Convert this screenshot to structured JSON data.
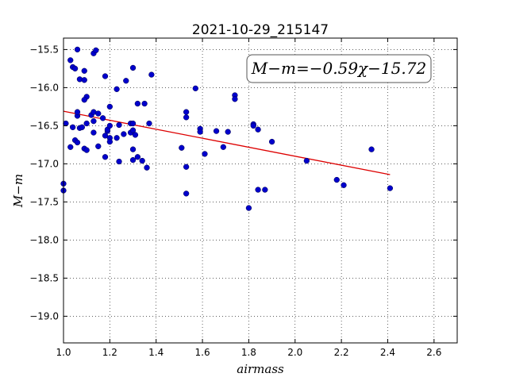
{
  "chart_data": {
    "type": "scatter",
    "title": "2021-10-29_215147",
    "xlabel": "airmass",
    "ylabel": "M−m",
    "xlim": [
      1.0,
      2.7
    ],
    "ylim": [
      -19.35,
      -15.35
    ],
    "y_inverted": true,
    "grid": true,
    "x_ticks": [
      1.0,
      1.2,
      1.4,
      1.6,
      1.8,
      2.0,
      2.2,
      2.4,
      2.6
    ],
    "x_tick_labels": [
      "1.0",
      "1.2",
      "1.4",
      "1.6",
      "1.8",
      "2.0",
      "2.2",
      "2.4",
      "2.6"
    ],
    "y_ticks": [
      -15.5,
      -16.0,
      -16.5,
      -17.0,
      -17.5,
      -18.0,
      -18.5,
      -19.0
    ],
    "y_tick_labels": [
      "−15.5",
      "−16.0",
      "−16.5",
      "−17.0",
      "−17.5",
      "−18.0",
      "−18.5",
      "−19.0"
    ],
    "annotation": "M−m=−0.59χ−15.72",
    "colors": {
      "points": "#0000cc",
      "fit_line": "#dd0000"
    },
    "fit": {
      "slope": -0.59,
      "intercept": -15.72,
      "x_range": [
        1.0,
        2.41
      ]
    },
    "points": [
      [
        1.0,
        -17.26
      ],
      [
        1.0,
        -17.35
      ],
      [
        1.01,
        -16.47
      ],
      [
        1.03,
        -15.64
      ],
      [
        1.04,
        -15.73
      ],
      [
        1.05,
        -15.75
      ],
      [
        1.06,
        -15.5
      ],
      [
        1.07,
        -15.89
      ],
      [
        1.09,
        -15.9
      ],
      [
        1.09,
        -15.78
      ],
      [
        1.1,
        -16.12
      ],
      [
        1.09,
        -16.16
      ],
      [
        1.04,
        -16.52
      ],
      [
        1.05,
        -16.69
      ],
      [
        1.06,
        -16.72
      ],
      [
        1.03,
        -16.78
      ],
      [
        1.07,
        -16.53
      ],
      [
        1.08,
        -16.52
      ],
      [
        1.06,
        -16.37
      ],
      [
        1.06,
        -16.32
      ],
      [
        1.1,
        -16.47
      ],
      [
        1.09,
        -16.8
      ],
      [
        1.1,
        -16.82
      ],
      [
        1.12,
        -16.36
      ],
      [
        1.13,
        -16.32
      ],
      [
        1.13,
        -16.44
      ],
      [
        1.13,
        -16.59
      ],
      [
        1.13,
        -15.55
      ],
      [
        1.14,
        -15.51
      ],
      [
        1.15,
        -16.34
      ],
      [
        1.15,
        -16.77
      ],
      [
        1.17,
        -16.4
      ],
      [
        1.18,
        -15.85
      ],
      [
        1.18,
        -16.63
      ],
      [
        1.19,
        -16.57
      ],
      [
        1.19,
        -16.55
      ],
      [
        1.2,
        -16.5
      ],
      [
        1.2,
        -16.25
      ],
      [
        1.2,
        -16.66
      ],
      [
        1.2,
        -16.71
      ],
      [
        1.18,
        -16.91
      ],
      [
        1.23,
        -16.02
      ],
      [
        1.23,
        -16.66
      ],
      [
        1.24,
        -16.49
      ],
      [
        1.24,
        -16.97
      ],
      [
        1.26,
        -16.61
      ],
      [
        1.27,
        -15.91
      ],
      [
        1.29,
        -16.47
      ],
      [
        1.29,
        -16.59
      ],
      [
        1.3,
        -16.47
      ],
      [
        1.3,
        -16.56
      ],
      [
        1.3,
        -15.74
      ],
      [
        1.31,
        -16.62
      ],
      [
        1.3,
        -16.81
      ],
      [
        1.3,
        -16.95
      ],
      [
        1.32,
        -16.91
      ],
      [
        1.32,
        -16.21
      ],
      [
        1.34,
        -16.96
      ],
      [
        1.35,
        -16.21
      ],
      [
        1.36,
        -17.05
      ],
      [
        1.37,
        -16.47
      ],
      [
        1.38,
        -15.83
      ],
      [
        1.51,
        -16.79
      ],
      [
        1.53,
        -16.32
      ],
      [
        1.53,
        -16.39
      ],
      [
        1.53,
        -17.04
      ],
      [
        1.53,
        -17.39
      ],
      [
        1.57,
        -16.01
      ],
      [
        1.59,
        -16.54
      ],
      [
        1.59,
        -16.58
      ],
      [
        1.61,
        -16.87
      ],
      [
        1.66,
        -16.57
      ],
      [
        1.69,
        -16.78
      ],
      [
        1.71,
        -16.58
      ],
      [
        1.74,
        -16.1
      ],
      [
        1.74,
        -16.15
      ],
      [
        1.8,
        -17.58
      ],
      [
        1.82,
        -16.48
      ],
      [
        1.82,
        -16.5
      ],
      [
        1.84,
        -16.55
      ],
      [
        1.84,
        -17.34
      ],
      [
        1.87,
        -17.34
      ],
      [
        1.9,
        -16.71
      ],
      [
        2.05,
        -16.96
      ],
      [
        2.18,
        -17.21
      ],
      [
        2.21,
        -17.28
      ],
      [
        2.33,
        -16.81
      ],
      [
        2.41,
        -17.32
      ]
    ]
  }
}
